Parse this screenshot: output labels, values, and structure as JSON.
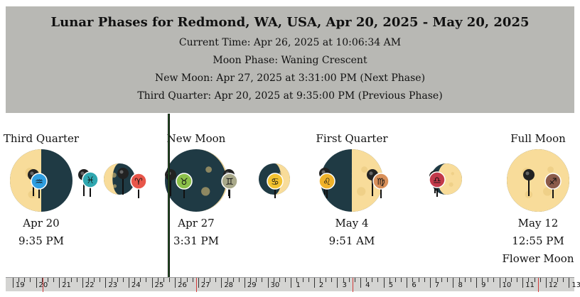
{
  "header": {
    "title": "Lunar Phases for Redmond, WA, USA, Apr 20, 2025 - May 20, 2025",
    "current_time": "Current Time: Apr 26, 2025 at 10:06:34 AM",
    "moon_phase": "Moon Phase: Waning Crescent",
    "next_phase": "New Moon: Apr 27, 2025 at 3:31:00 PM (Next Phase)",
    "previous_phase": "Third Quarter: Apr 20, 2025 at 9:35:00 PM (Previous Phase)"
  },
  "phases": [
    {
      "name": "Third Quarter",
      "date": "Apr 20",
      "time": "9:35 PM"
    },
    {
      "name": "New Moon",
      "date": "Apr 27",
      "time": "3:31 PM"
    },
    {
      "name": "First Quarter",
      "date": "May 4",
      "time": "9:51 AM"
    },
    {
      "name": "Full Moon",
      "date": "May 12",
      "time": "12:55 PM",
      "moon_name": "Flower Moon"
    }
  ],
  "zodiac_signs": [
    {
      "name": "aquarius",
      "glyph": "♒",
      "color": "#2f9ee0"
    },
    {
      "name": "pisces",
      "glyph": "♓",
      "color": "#2fa7b0"
    },
    {
      "name": "aries",
      "glyph": "♈",
      "color": "#e8564a"
    },
    {
      "name": "taurus",
      "glyph": "♉",
      "color": "#8cc04a"
    },
    {
      "name": "gemini",
      "glyph": "♊",
      "color": "#a9a98a"
    },
    {
      "name": "cancer",
      "glyph": "♋",
      "color": "#f2c230"
    },
    {
      "name": "leo",
      "glyph": "♌",
      "color": "#f0b22a"
    },
    {
      "name": "virgo",
      "glyph": "♍",
      "color": "#d9905a"
    },
    {
      "name": "libra",
      "glyph": "♎",
      "color": "#c2394a"
    },
    {
      "name": "sagittarius",
      "glyph": "♐",
      "color": "#8a5a4a"
    }
  ],
  "colors": {
    "moon_light": "#f8dc9a",
    "moon_crater": "#e8c67a",
    "moon_dark": "#1f3a44",
    "header_bg": "#b8b8b4",
    "ruler_red": "#d23b3b"
  },
  "ruler": {
    "days": [
      "19",
      "20",
      "21",
      "22",
      "23",
      "24",
      "25",
      "26",
      "27",
      "28",
      "29",
      "30",
      "1",
      "2",
      "3",
      "4",
      "5",
      "6",
      "7",
      "8",
      "9",
      "10",
      "11",
      "12",
      "13"
    ]
  }
}
